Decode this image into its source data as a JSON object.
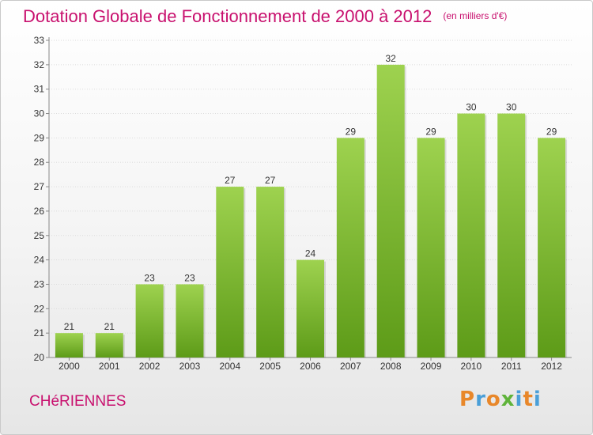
{
  "header": {
    "title": "Dotation Globale de Fonctionnement de 2000 à 2012",
    "unit": "(en milliers d'€)"
  },
  "footer": {
    "commune": "CHéRIENNES",
    "logo": "Proxiti"
  },
  "colors": {
    "title": "#c8106e",
    "bar_light": "#9ed24f",
    "bar_dark": "#5d9b18"
  },
  "chart_data": {
    "type": "bar",
    "title": "Dotation Globale de Fonctionnement de 2000 à 2012",
    "subtitle": "(en milliers d'€)",
    "categories": [
      "2000",
      "2001",
      "2002",
      "2003",
      "2004",
      "2005",
      "2006",
      "2007",
      "2008",
      "2009",
      "2010",
      "2011",
      "2012"
    ],
    "values": [
      21,
      21,
      23,
      23,
      27,
      27,
      24,
      29,
      32,
      29,
      30,
      30,
      29
    ],
    "ylim": [
      20,
      33
    ],
    "yticks": [
      20,
      21,
      22,
      23,
      24,
      25,
      26,
      27,
      28,
      29,
      30,
      31,
      32,
      33
    ],
    "grid": true,
    "legend": "none"
  }
}
